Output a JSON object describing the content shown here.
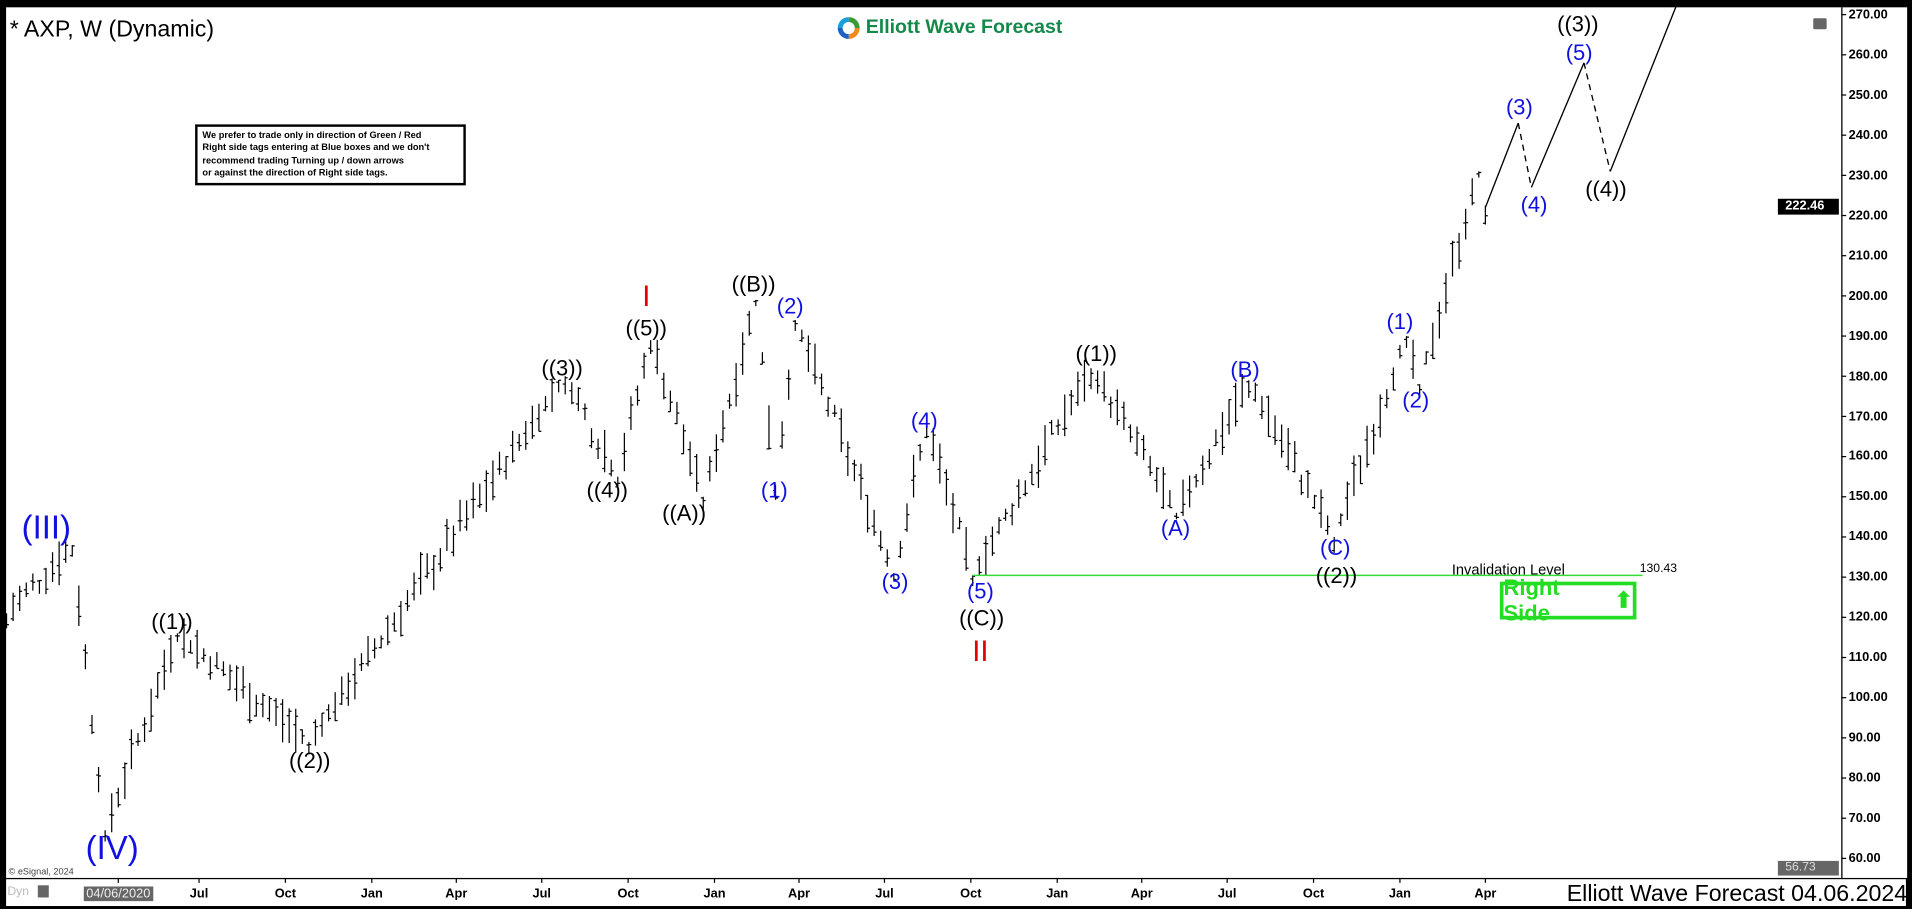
{
  "header": {
    "title": "* AXP, W (Dynamic)",
    "logo_text": "Elliott Wave Forecast"
  },
  "note": [
    "We prefer to trade only in direction of Green / Red",
    "Right side tags entering at Blue boxes and we don't",
    "recommend trading Turning up / down arrows",
    "or against the direction of Right side tags."
  ],
  "footer": {
    "text": "Elliott Wave Forecast 04.06.2024",
    "copyright": "© eSignal, 2024",
    "dyn": "Dyn"
  },
  "invalidation": {
    "label": "Invalidation Level",
    "value": "130.43",
    "price": 130.43,
    "color": "#33dd33"
  },
  "right_side": {
    "label": "Right Side",
    "icon": "arrow-up-icon",
    "color": "#22dd22"
  },
  "chart_data": {
    "type": "ohlc",
    "symbol": "AXP",
    "interval": "W",
    "last_price": "222.46",
    "low_marker": "56.73",
    "ylim": [
      56.73,
      270
    ],
    "y_ticks": [
      "270.00",
      "260.00",
      "250.00",
      "240.00",
      "230.00",
      "220.00",
      "210.00",
      "200.00",
      "190.00",
      "180.00",
      "170.00",
      "160.00",
      "150.00",
      "140.00",
      "130.00",
      "120.00",
      "110.00",
      "100.00",
      "90.00",
      "80.00",
      "70.00",
      "60.00"
    ],
    "x_ticks": [
      {
        "label": "04/06/2020",
        "date": "2020-04-06"
      },
      {
        "label": "Jul",
        "date": "2020-07-01"
      },
      {
        "label": "Oct",
        "date": "2020-10-01"
      },
      {
        "label": "Jan",
        "date": "2021-01-01"
      },
      {
        "label": "Apr",
        "date": "2021-04-01"
      },
      {
        "label": "Jul",
        "date": "2021-07-01"
      },
      {
        "label": "Oct",
        "date": "2021-10-01"
      },
      {
        "label": "Jan",
        "date": "2022-01-01"
      },
      {
        "label": "Apr",
        "date": "2022-04-01"
      },
      {
        "label": "Jul",
        "date": "2022-07-01"
      },
      {
        "label": "Oct",
        "date": "2022-10-01"
      },
      {
        "label": "Jan",
        "date": "2023-01-01"
      },
      {
        "label": "Apr",
        "date": "2023-04-01"
      },
      {
        "label": "Jul",
        "date": "2023-07-01"
      },
      {
        "label": "Oct",
        "date": "2023-10-01"
      },
      {
        "label": "Jan",
        "date": "2024-01-01"
      },
      {
        "label": "Apr",
        "date": "2024-04-01"
      }
    ],
    "price_pivots": [
      {
        "date": "2019-12-09",
        "price": 121
      },
      {
        "date": "2020-02-17",
        "price": 138
      },
      {
        "date": "2020-03-23",
        "price": 67
      },
      {
        "date": "2020-06-08",
        "price": 116
      },
      {
        "date": "2020-10-26",
        "price": 89
      },
      {
        "date": "2021-07-26",
        "price": 180
      },
      {
        "date": "2021-09-20",
        "price": 155
      },
      {
        "date": "2021-10-25",
        "price": 189
      },
      {
        "date": "2021-12-20",
        "price": 150
      },
      {
        "date": "2022-02-14",
        "price": 199
      },
      {
        "date": "2022-03-07",
        "price": 153
      },
      {
        "date": "2022-03-28",
        "price": 194
      },
      {
        "date": "2022-07-11",
        "price": 131
      },
      {
        "date": "2022-08-15",
        "price": 168
      },
      {
        "date": "2022-10-03",
        "price": 130.43
      },
      {
        "date": "2023-02-06",
        "price": 182
      },
      {
        "date": "2023-05-08",
        "price": 146
      },
      {
        "date": "2023-07-24",
        "price": 179
      },
      {
        "date": "2023-10-23",
        "price": 140
      },
      {
        "date": "2024-01-08",
        "price": 190
      },
      {
        "date": "2024-01-22",
        "price": 178
      },
      {
        "date": "2024-03-25",
        "price": 231
      },
      {
        "date": "2024-04-01",
        "price": 222.46
      }
    ],
    "projection": [
      {
        "date": "2024-04-01",
        "price": 222,
        "style": "solid"
      },
      {
        "date": "2024-05-06",
        "price": 243,
        "style": "dashed"
      },
      {
        "date": "2024-05-20",
        "price": 227,
        "style": "solid"
      },
      {
        "date": "2024-07-15",
        "price": 258,
        "style": "dashed"
      },
      {
        "date": "2024-08-12",
        "price": 231,
        "style": "solid"
      },
      {
        "date": "2024-10-21",
        "price": 272,
        "style": "solid"
      }
    ],
    "wave_labels": [
      {
        "text": "(III)",
        "color": "blue",
        "size": "big"
      },
      {
        "text": "(IV)",
        "color": "blue",
        "size": "big"
      },
      {
        "text": "((1))",
        "color": "black"
      },
      {
        "text": "((2))",
        "color": "black"
      },
      {
        "text": "((3))",
        "color": "black"
      },
      {
        "text": "((4))",
        "color": "black"
      },
      {
        "text": "((5))",
        "color": "black"
      },
      {
        "text": "I",
        "color": "red"
      },
      {
        "text": "((A))",
        "color": "black"
      },
      {
        "text": "((B))",
        "color": "black"
      },
      {
        "text": "(1)",
        "color": "blue"
      },
      {
        "text": "(2)",
        "color": "blue"
      },
      {
        "text": "(3)",
        "color": "blue"
      },
      {
        "text": "(4)",
        "color": "blue"
      },
      {
        "text": "(5)",
        "color": "blue"
      },
      {
        "text": "((C))",
        "color": "black"
      },
      {
        "text": "II",
        "color": "red"
      },
      {
        "text": "((1))",
        "color": "black"
      },
      {
        "text": "(A)",
        "color": "blue"
      },
      {
        "text": "(B)",
        "color": "blue"
      },
      {
        "text": "(C)",
        "color": "blue"
      },
      {
        "text": "((2))",
        "color": "black"
      },
      {
        "text": "(1)",
        "color": "blue"
      },
      {
        "text": "(2)",
        "color": "blue"
      },
      {
        "text": "(3)",
        "color": "blue"
      },
      {
        "text": "(4)",
        "color": "blue"
      },
      {
        "text": "(5)",
        "color": "blue"
      },
      {
        "text": "((3))",
        "color": "black"
      },
      {
        "text": "((4))",
        "color": "black"
      }
    ]
  }
}
